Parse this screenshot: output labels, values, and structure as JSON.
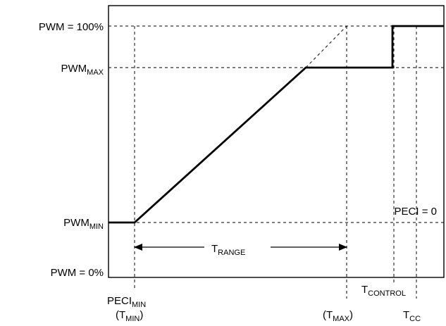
{
  "labels": {
    "y_pwm_100": "PWM = 100%",
    "y_pwm_max_main": "PWM",
    "y_pwm_max_sub": "MAX",
    "y_pwm_min_main": "PWM",
    "y_pwm_min_sub": "MIN",
    "y_pwm_0": "PWM = 0%",
    "peci_zero": "PECI = 0",
    "t_range_main": "T",
    "t_range_sub": "RANGE",
    "peci_min_main": "PECI",
    "peci_min_sub": "MIN",
    "t_min_open": "(T",
    "t_min_sub": "MIN",
    "t_min_close": ")",
    "t_max_open": "(T",
    "t_max_sub": "MAX",
    "t_max_close": ")",
    "t_control_main": "T",
    "t_control_sub": "CONTROL",
    "t_cc_main": "T",
    "t_cc_sub": "CC"
  }
}
